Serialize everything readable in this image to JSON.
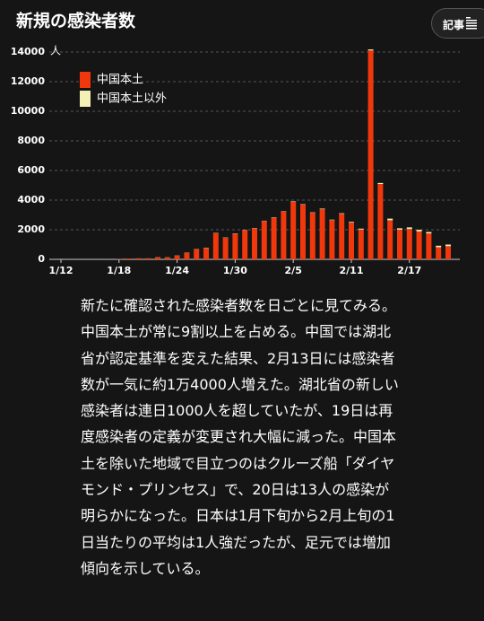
{
  "header": {
    "button": "記事"
  },
  "chart_data": {
    "type": "stacked_bar",
    "title": "新規の感染者数",
    "ylabel": "人",
    "categories": [
      "1/12",
      null,
      null,
      null,
      null,
      null,
      "1/18",
      null,
      null,
      null,
      null,
      null,
      "1/24",
      null,
      null,
      null,
      null,
      null,
      "1/30",
      null,
      null,
      null,
      null,
      null,
      "2/5",
      null,
      null,
      null,
      null,
      null,
      "2/11",
      null,
      null,
      null,
      null,
      null,
      "2/17",
      null,
      null,
      null,
      null
    ],
    "series": [
      {
        "name": "中国本土",
        "color": "#f0380c",
        "values": [
          0,
          0,
          0,
          0,
          0,
          4,
          17,
          59,
          77,
          77,
          149,
          131,
          259,
          444,
          688,
          769,
          1771,
          1459,
          1737,
          1981,
          2099,
          2589,
          2825,
          3235,
          3887,
          3694,
          3143,
          3385,
          2652,
          3073,
          2478,
          2015,
          14108,
          5090,
          2641,
          2008,
          2048,
          1886,
          1749,
          820,
          889
        ]
      },
      {
        "name": "中国本土以外",
        "color": "#f4efb4",
        "values": [
          0,
          0,
          0,
          0,
          0,
          0,
          0,
          0,
          0,
          0,
          5,
          10,
          10,
          15,
          15,
          20,
          20,
          20,
          20,
          15,
          20,
          20,
          20,
          20,
          30,
          30,
          30,
          40,
          30,
          40,
          50,
          60,
          70,
          70,
          110,
          90,
          110,
          110,
          100,
          100,
          110
        ]
      }
    ],
    "ylim": [
      0,
      14000
    ],
    "yticks": [
      0,
      2000,
      4000,
      6000,
      8000,
      10000,
      12000,
      14000
    ],
    "grid": true,
    "legend": "top-left"
  },
  "article": {
    "body": "新たに確認された感染者数を日ごとに見てみる。中国本土が常に9割以上を占める。中国では湖北省が認定基準を変えた結果、2月13日には感染者数が一気に約1万4000人増えた。湖北省の新しい感染者は連日1000人を超していたが、19日は再度感染者の定義が変更され大幅に減った。中国本土を除いた地域で目立つのはクルーズ船「ダイヤモンド・プリンセス」で、20日は13人の感染が明らかになった。日本は1月下旬から2月上旬の1日当たりの平均は1人強だったが、足元では増加傾向を示している。"
  }
}
